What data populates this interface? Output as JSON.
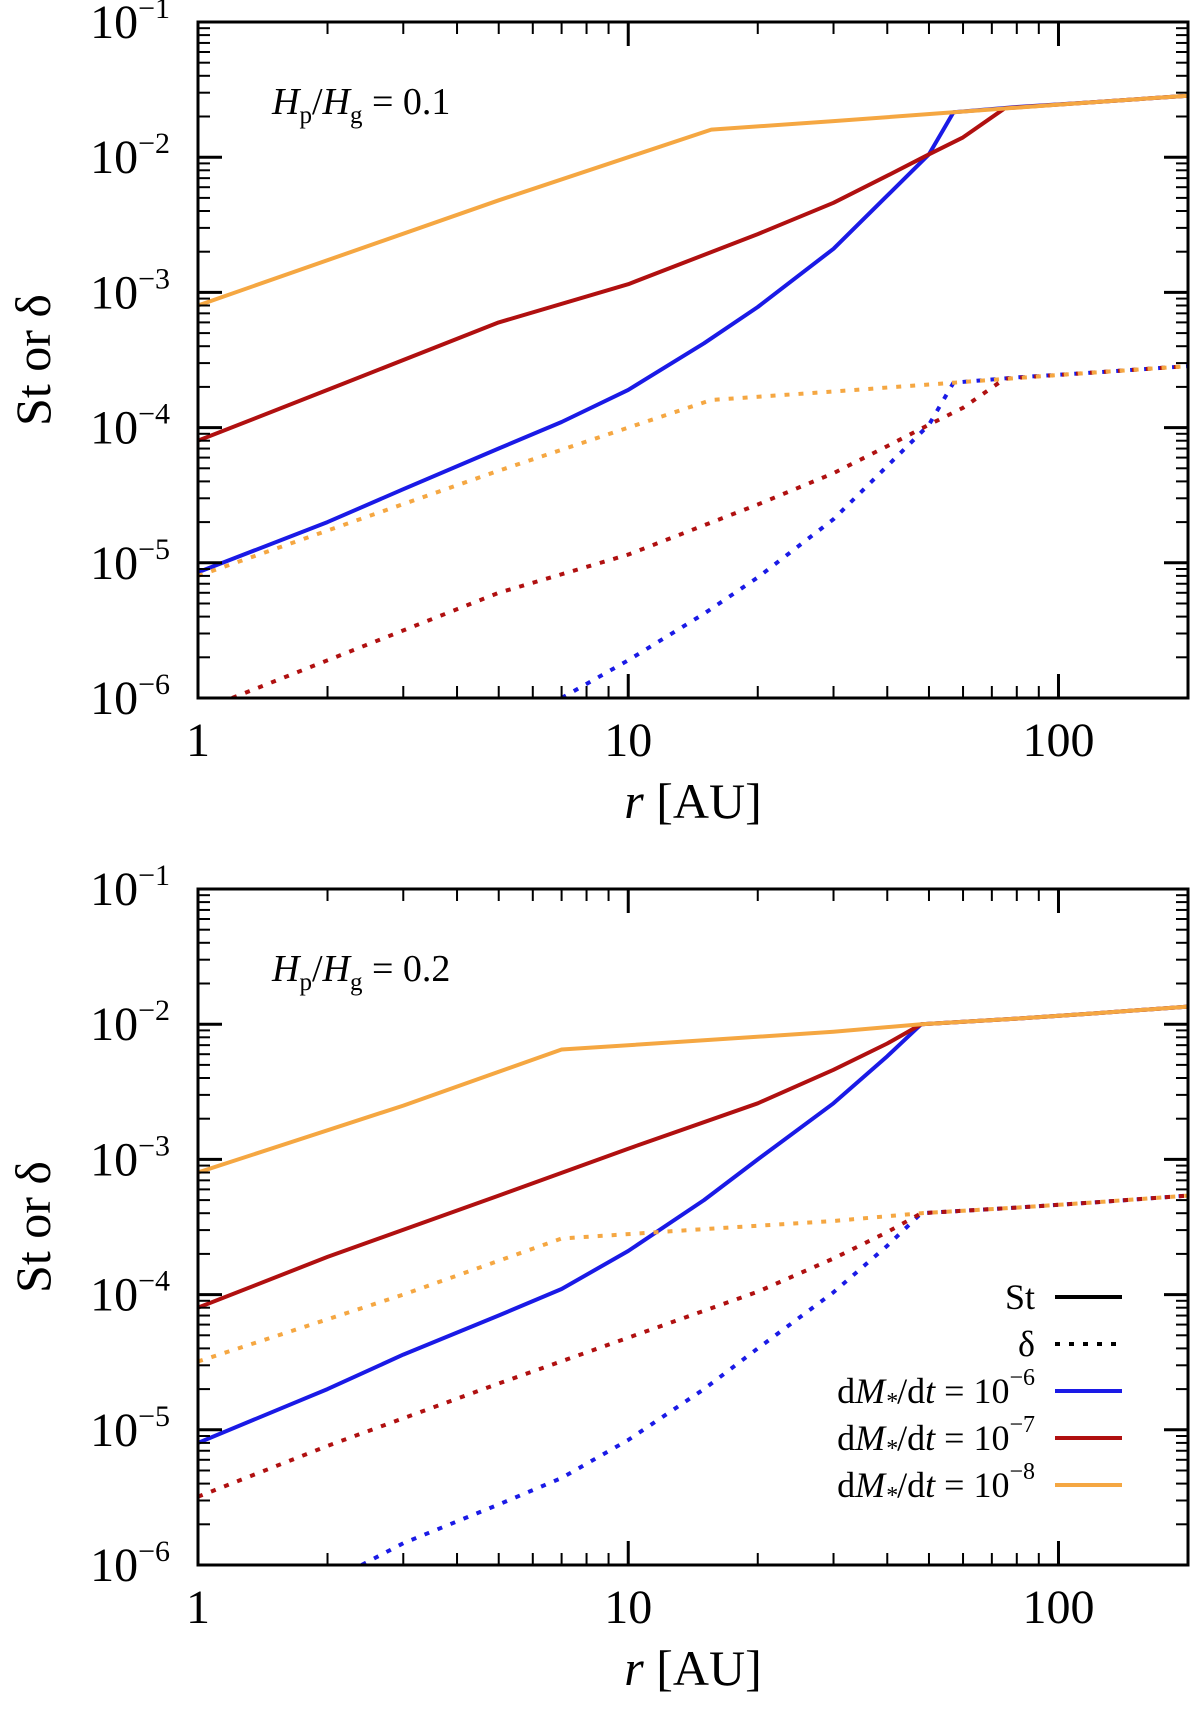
{
  "colors": {
    "blue": "#1a1ae6",
    "red": "#b01010",
    "orange": "#f5a742",
    "axis": "#000000"
  },
  "legend": {
    "st_label": "St",
    "delta_label": "δ",
    "rate_prefix": "dM",
    "rate_star": "*",
    "rate_mid": "/dt = 10",
    "rate_exponents": [
      "−6",
      "−7",
      "−8"
    ]
  },
  "chart_data": [
    {
      "type": "line",
      "title": "",
      "annotation": {
        "lhs": "H",
        "lhs_sub": "p",
        "mid": "/H",
        "mid_sub": "g",
        "rhs": " = 0.1"
      },
      "xlabel": "r",
      "xlabel_unit": " [AU]",
      "ylabel": "St or δ",
      "xscale": "log",
      "yscale": "log",
      "xlim": [
        1,
        200
      ],
      "ylim": [
        1e-06,
        0.1
      ],
      "xticks": [
        1,
        10,
        100
      ],
      "xtick_labels": [
        "1",
        "10",
        "100"
      ],
      "yticks": [
        1e-06,
        1e-05,
        0.0001,
        0.001,
        0.01,
        0.1
      ],
      "ytick_labels": [
        [
          "10",
          "−6"
        ],
        [
          "10",
          "−5"
        ],
        [
          "10",
          "−4"
        ],
        [
          "10",
          "−3"
        ],
        [
          "10",
          "−2"
        ],
        [
          "10",
          "−1"
        ]
      ],
      "grid": false,
      "series": [
        {
          "quantity": "St",
          "style": "solid",
          "color": "blue",
          "rate": "10^-6",
          "x": [
            1,
            2,
            3,
            5,
            7,
            10,
            15,
            20,
            30,
            40,
            50,
            57,
            80,
            120,
            200
          ],
          "y": [
            8.5e-06,
            2e-05,
            3.5e-05,
            7e-05,
            0.00011,
            0.00019,
            0.00042,
            0.00078,
            0.0021,
            0.0052,
            0.0105,
            0.0215,
            0.0235,
            0.0255,
            0.0285
          ]
        },
        {
          "quantity": "St",
          "style": "solid",
          "color": "red",
          "rate": "10^-7",
          "x": [
            1,
            2,
            5,
            10,
            20,
            30,
            40,
            50,
            60,
            75,
            120,
            200
          ],
          "y": [
            8e-05,
            0.00019,
            0.0006,
            0.00115,
            0.0027,
            0.0046,
            0.0073,
            0.0105,
            0.014,
            0.023,
            0.0255,
            0.0285
          ]
        },
        {
          "quantity": "St",
          "style": "solid",
          "color": "orange",
          "rate": "10^-8",
          "x": [
            1,
            5,
            15.6,
            30,
            57,
            100,
            200
          ],
          "y": [
            0.0008,
            0.0048,
            0.016,
            0.0185,
            0.0215,
            0.0245,
            0.0285
          ]
        },
        {
          "quantity": "δ",
          "style": "dotted",
          "color": "blue",
          "rate": "10^-6",
          "x": [
            7,
            10,
            15,
            20,
            30,
            40,
            50,
            57,
            80,
            120,
            200
          ],
          "y": [
            1e-06,
            1.9e-06,
            4.2e-06,
            7.8e-06,
            2.1e-05,
            5.2e-05,
            0.000105,
            0.000215,
            0.000235,
            0.000255,
            0.000285
          ]
        },
        {
          "quantity": "δ",
          "style": "dotted",
          "color": "red",
          "rate": "10^-7",
          "x": [
            1.2,
            2,
            5,
            10,
            20,
            30,
            40,
            50,
            60,
            75,
            120,
            200
          ],
          "y": [
            1e-06,
            1.9e-06,
            6e-06,
            1.15e-05,
            2.7e-05,
            4.6e-05,
            7.3e-05,
            0.000105,
            0.00014,
            0.00023,
            0.000255,
            0.000285
          ]
        },
        {
          "quantity": "δ",
          "style": "dotted",
          "color": "orange",
          "rate": "10^-8",
          "x": [
            1,
            5,
            15.6,
            30,
            57,
            100,
            200
          ],
          "y": [
            8e-06,
            4.8e-05,
            0.00016,
            0.000185,
            0.000215,
            0.000245,
            0.000285
          ]
        }
      ]
    },
    {
      "type": "line",
      "title": "",
      "annotation": {
        "lhs": "H",
        "lhs_sub": "p",
        "mid": "/H",
        "mid_sub": "g",
        "rhs": " = 0.2"
      },
      "xlabel": "r",
      "xlabel_unit": " [AU]",
      "ylabel": "St or δ",
      "xscale": "log",
      "yscale": "log",
      "xlim": [
        1,
        200
      ],
      "ylim": [
        1e-06,
        0.1
      ],
      "xticks": [
        1,
        10,
        100
      ],
      "xtick_labels": [
        "1",
        "10",
        "100"
      ],
      "yticks": [
        1e-06,
        1e-05,
        0.0001,
        0.001,
        0.01,
        0.1
      ],
      "ytick_labels": [
        [
          "10",
          "−6"
        ],
        [
          "10",
          "−5"
        ],
        [
          "10",
          "−4"
        ],
        [
          "10",
          "−3"
        ],
        [
          "10",
          "−2"
        ],
        [
          "10",
          "−1"
        ]
      ],
      "grid": false,
      "legend_position": "bottom-right",
      "series": [
        {
          "quantity": "St",
          "style": "solid",
          "color": "blue",
          "rate": "10^-6",
          "x": [
            1,
            2,
            3,
            5,
            7,
            10,
            15,
            20,
            30,
            40,
            48,
            80,
            120,
            200
          ],
          "y": [
            8e-06,
            2e-05,
            3.6e-05,
            7e-05,
            0.00011,
            0.00021,
            0.0005,
            0.001,
            0.0026,
            0.0058,
            0.01,
            0.011,
            0.012,
            0.0135
          ]
        },
        {
          "quantity": "St",
          "style": "solid",
          "color": "red",
          "rate": "10^-7",
          "x": [
            1,
            2,
            5,
            10,
            20,
            30,
            40,
            48,
            80,
            120,
            200
          ],
          "y": [
            8e-05,
            0.00019,
            0.00054,
            0.0012,
            0.0026,
            0.0046,
            0.0072,
            0.01,
            0.011,
            0.012,
            0.0135
          ]
        },
        {
          "quantity": "St",
          "style": "solid",
          "color": "orange",
          "rate": "10^-8",
          "x": [
            1,
            3,
            7,
            15,
            30,
            48,
            80,
            120,
            200
          ],
          "y": [
            0.0008,
            0.0025,
            0.0065,
            0.0076,
            0.0088,
            0.01,
            0.011,
            0.012,
            0.0135
          ]
        },
        {
          "quantity": "δ",
          "style": "dotted",
          "color": "blue",
          "rate": "10^-6",
          "x": [
            2.4,
            3,
            5,
            7,
            10,
            15,
            20,
            30,
            40,
            48,
            80,
            120,
            200
          ],
          "y": [
            1e-06,
            1.45e-06,
            2.8e-06,
            4.4e-06,
            8.4e-06,
            2e-05,
            4e-05,
            0.000104,
            0.00023,
            0.0004,
            0.00044,
            0.00048,
            0.00054
          ]
        },
        {
          "quantity": "δ",
          "style": "dotted",
          "color": "red",
          "rate": "10^-7",
          "x": [
            1,
            2,
            5,
            10,
            20,
            30,
            40,
            48,
            80,
            120,
            200
          ],
          "y": [
            3.2e-06,
            7.6e-06,
            2.2e-05,
            4.8e-05,
            0.000105,
            0.000185,
            0.00029,
            0.0004,
            0.00044,
            0.00048,
            0.00054
          ]
        },
        {
          "quantity": "δ",
          "style": "dotted",
          "color": "orange",
          "rate": "10^-8",
          "x": [
            1,
            3,
            7,
            15,
            30,
            48,
            80,
            120,
            200
          ],
          "y": [
            3.2e-05,
            0.0001,
            0.00026,
            0.000305,
            0.00035,
            0.0004,
            0.00044,
            0.00048,
            0.00054
          ]
        }
      ]
    }
  ]
}
